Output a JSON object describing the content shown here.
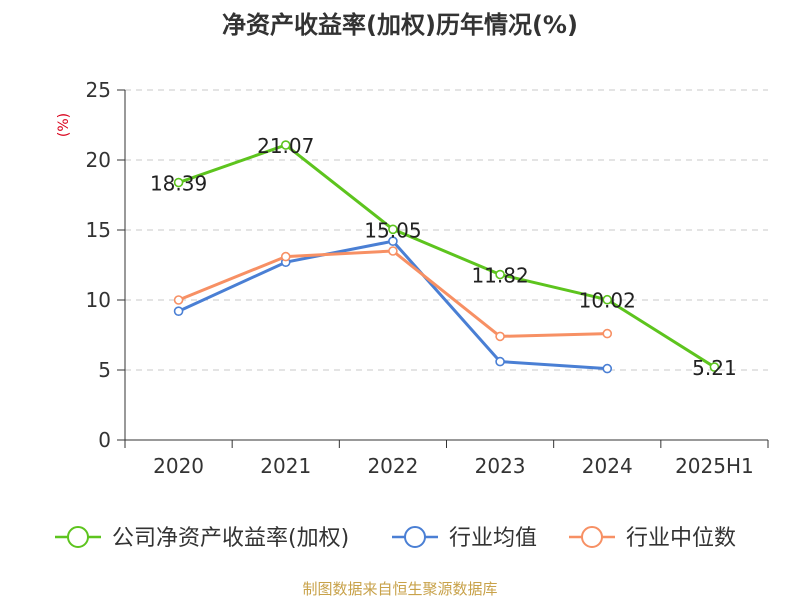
{
  "chart_data": {
    "type": "line",
    "title": "净资产收益率(加权)历年情况(%)",
    "ylabel": "(%)",
    "xlabel": "",
    "categories": [
      "2020",
      "2021",
      "2022",
      "2023",
      "2024",
      "2025H1"
    ],
    "ylim": [
      0,
      25
    ],
    "yticks": [
      0,
      5,
      10,
      15,
      20,
      25
    ],
    "grid": true,
    "legend_position": "bottom",
    "series": [
      {
        "name": "公司净资产收益率(加权)",
        "color": "#5dc41e",
        "values": [
          18.39,
          21.07,
          15.05,
          11.82,
          10.02,
          5.21
        ],
        "data_labels": [
          "18.39",
          "21.07",
          "15.05",
          "11.82",
          "10.02",
          "5.21"
        ]
      },
      {
        "name": "行业均值",
        "color": "#4a7fd4",
        "values": [
          9.2,
          12.7,
          14.2,
          5.6,
          5.1,
          null
        ]
      },
      {
        "name": "行业中位数",
        "color": "#f79064",
        "values": [
          10.0,
          13.1,
          13.5,
          7.4,
          7.6,
          null
        ]
      }
    ],
    "source": "制图数据来自恒生聚源数据库"
  }
}
